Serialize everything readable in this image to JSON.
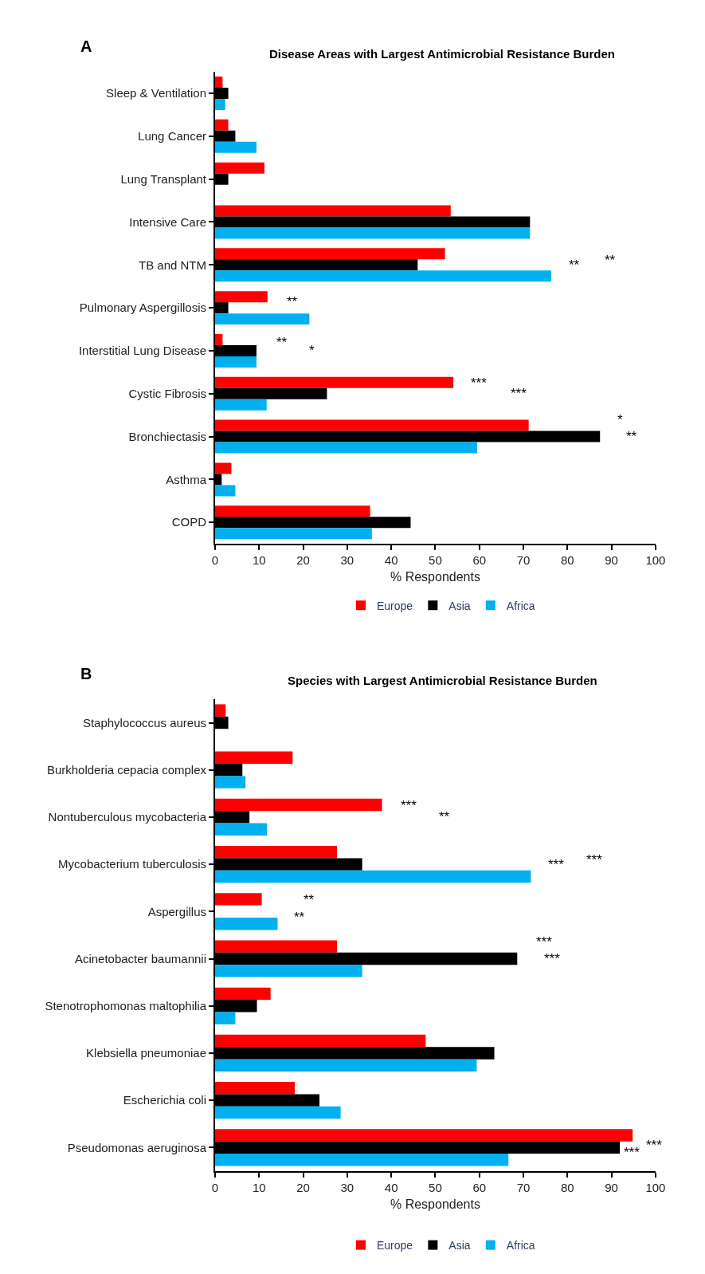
{
  "chart_data": [
    {
      "type": "bar",
      "orientation": "horizontal",
      "title": "Disease Areas with Largest Antimicrobial Resistance Burden",
      "xlabel": "% Respondents",
      "categories": [
        "Sleep & Ventilation",
        "Lung Cancer",
        "Lung Transplant",
        "Intensive Care",
        "TB and NTM",
        "Pulmonary Aspergillosis",
        "Interstitial Lung Disease",
        "Cystic Fibrosis",
        "Bronchiectasis",
        "Asthma",
        "COPD"
      ],
      "series": [
        {
          "name": "Europe",
          "color": "#ff0000",
          "values": [
            1.7,
            3.0,
            11.2,
            53.5,
            52.2,
            11.9,
            1.7,
            54.1,
            71.2,
            3.7,
            35.2
          ]
        },
        {
          "name": "Asia",
          "color": "#000000",
          "values": [
            3.0,
            4.6,
            3.0,
            71.5,
            46.0,
            3.0,
            9.4,
            25.4,
            87.4,
            1.5,
            44.4
          ]
        },
        {
          "name": "Africa",
          "color": "#00b0f0",
          "values": [
            2.3,
            9.4,
            0,
            71.5,
            76.3,
            21.4,
            9.4,
            11.7,
            59.5,
            4.6,
            35.6
          ]
        }
      ],
      "xlim": [
        0,
        100
      ],
      "xticks": [
        0,
        10,
        20,
        30,
        40,
        50,
        60,
        70,
        80,
        90,
        100
      ],
      "legend": "bottom",
      "annotations": [
        "A",
        "**",
        "**",
        "**",
        "**",
        "*",
        "***",
        "***",
        "*",
        "**"
      ]
    },
    {
      "type": "bar",
      "orientation": "horizontal",
      "title": "Species with Largest Antimicrobial Resistance Burden",
      "xlabel": "% Respondents",
      "categories": [
        "Staphylococcus aureus",
        "Burkholderia cepacia complex",
        "Nontuberculous mycobacteria",
        "Mycobacterium tuberculosis",
        "Aspergillus",
        "Acinetobacter baumannii",
        "Stenotrophomonas maltophilia",
        "Klebsiella pneumoniae",
        "Escherichia coli",
        "Pseudomonas aeruginosa"
      ],
      "series": [
        {
          "name": "Europe",
          "color": "#ff0000",
          "values": [
            2.4,
            17.6,
            37.9,
            27.7,
            10.6,
            27.7,
            12.6,
            47.8,
            18.1,
            94.8
          ]
        },
        {
          "name": "Asia",
          "color": "#000000",
          "values": [
            3.0,
            6.2,
            7.8,
            33.4,
            0,
            68.6,
            9.5,
            63.4,
            23.7,
            91.9
          ]
        },
        {
          "name": "Africa",
          "color": "#00b0f0",
          "values": [
            0,
            6.9,
            11.8,
            71.7,
            14.2,
            33.4,
            4.6,
            59.4,
            28.5,
            66.6
          ]
        }
      ],
      "xlim": [
        0,
        100
      ],
      "xticks": [
        0,
        10,
        20,
        30,
        40,
        50,
        60,
        70,
        80,
        90,
        100
      ],
      "legend": "bottom",
      "annotations": [
        "B",
        "***",
        "**",
        "***",
        "***",
        "**",
        "**",
        "***",
        "***",
        "***",
        "***"
      ]
    }
  ]
}
